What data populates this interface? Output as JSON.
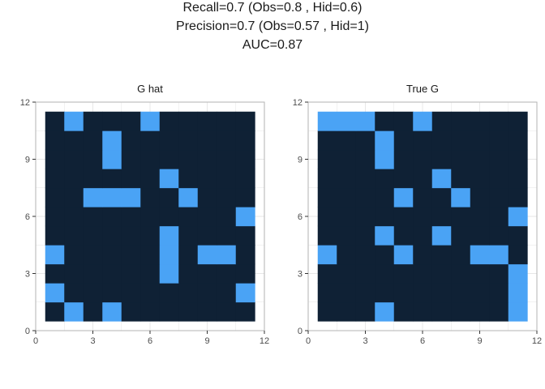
{
  "figure": {
    "title_lines": [
      "Recall=0.7 (Obs=0.8 , Hid=0.6)",
      "Precision=0.7 (Obs=0.57 , Hid=1)",
      "AUC=0.87"
    ]
  },
  "colors": {
    "background_cell": "#0f2135",
    "edge_cell": "#4aa3f5",
    "grid_line": "#e6e6e6",
    "panel_border": "#b3b3b3",
    "tick_text": "#4d4d4d"
  },
  "chart_data": [
    {
      "type": "heatmap",
      "title": "G hat",
      "xlim": [
        0,
        12
      ],
      "ylim": [
        0,
        12
      ],
      "xticks": [
        0,
        3,
        6,
        9,
        12
      ],
      "yticks": [
        0,
        3,
        6,
        9,
        12
      ],
      "grid": true,
      "cells": {
        "x_range": [
          1,
          11
        ],
        "y_range": [
          1,
          11
        ]
      },
      "highlighted": [
        [
          2,
          11
        ],
        [
          6,
          11
        ],
        [
          4,
          10
        ],
        [
          4,
          9
        ],
        [
          7,
          8
        ],
        [
          3,
          7
        ],
        [
          4,
          7
        ],
        [
          5,
          7
        ],
        [
          8,
          7
        ],
        [
          11,
          6
        ],
        [
          7,
          5
        ],
        [
          1,
          4
        ],
        [
          7,
          4
        ],
        [
          9,
          4
        ],
        [
          10,
          4
        ],
        [
          7,
          3
        ],
        [
          1,
          2
        ],
        [
          11,
          2
        ],
        [
          2,
          1
        ],
        [
          4,
          1
        ]
      ]
    },
    {
      "type": "heatmap",
      "title": "True G",
      "xlim": [
        0,
        12
      ],
      "ylim": [
        0,
        12
      ],
      "xticks": [
        0,
        3,
        6,
        9,
        12
      ],
      "yticks": [
        0,
        3,
        6,
        9,
        12
      ],
      "grid": true,
      "cells": {
        "x_range": [
          1,
          11
        ],
        "y_range": [
          1,
          11
        ]
      },
      "highlighted": [
        [
          1,
          11
        ],
        [
          2,
          11
        ],
        [
          3,
          11
        ],
        [
          6,
          11
        ],
        [
          4,
          10
        ],
        [
          4,
          9
        ],
        [
          7,
          8
        ],
        [
          5,
          7
        ],
        [
          8,
          7
        ],
        [
          11,
          6
        ],
        [
          4,
          5
        ],
        [
          7,
          5
        ],
        [
          1,
          4
        ],
        [
          5,
          4
        ],
        [
          9,
          4
        ],
        [
          10,
          4
        ],
        [
          11,
          3
        ],
        [
          11,
          2
        ],
        [
          4,
          1
        ],
        [
          11,
          1
        ]
      ]
    }
  ]
}
